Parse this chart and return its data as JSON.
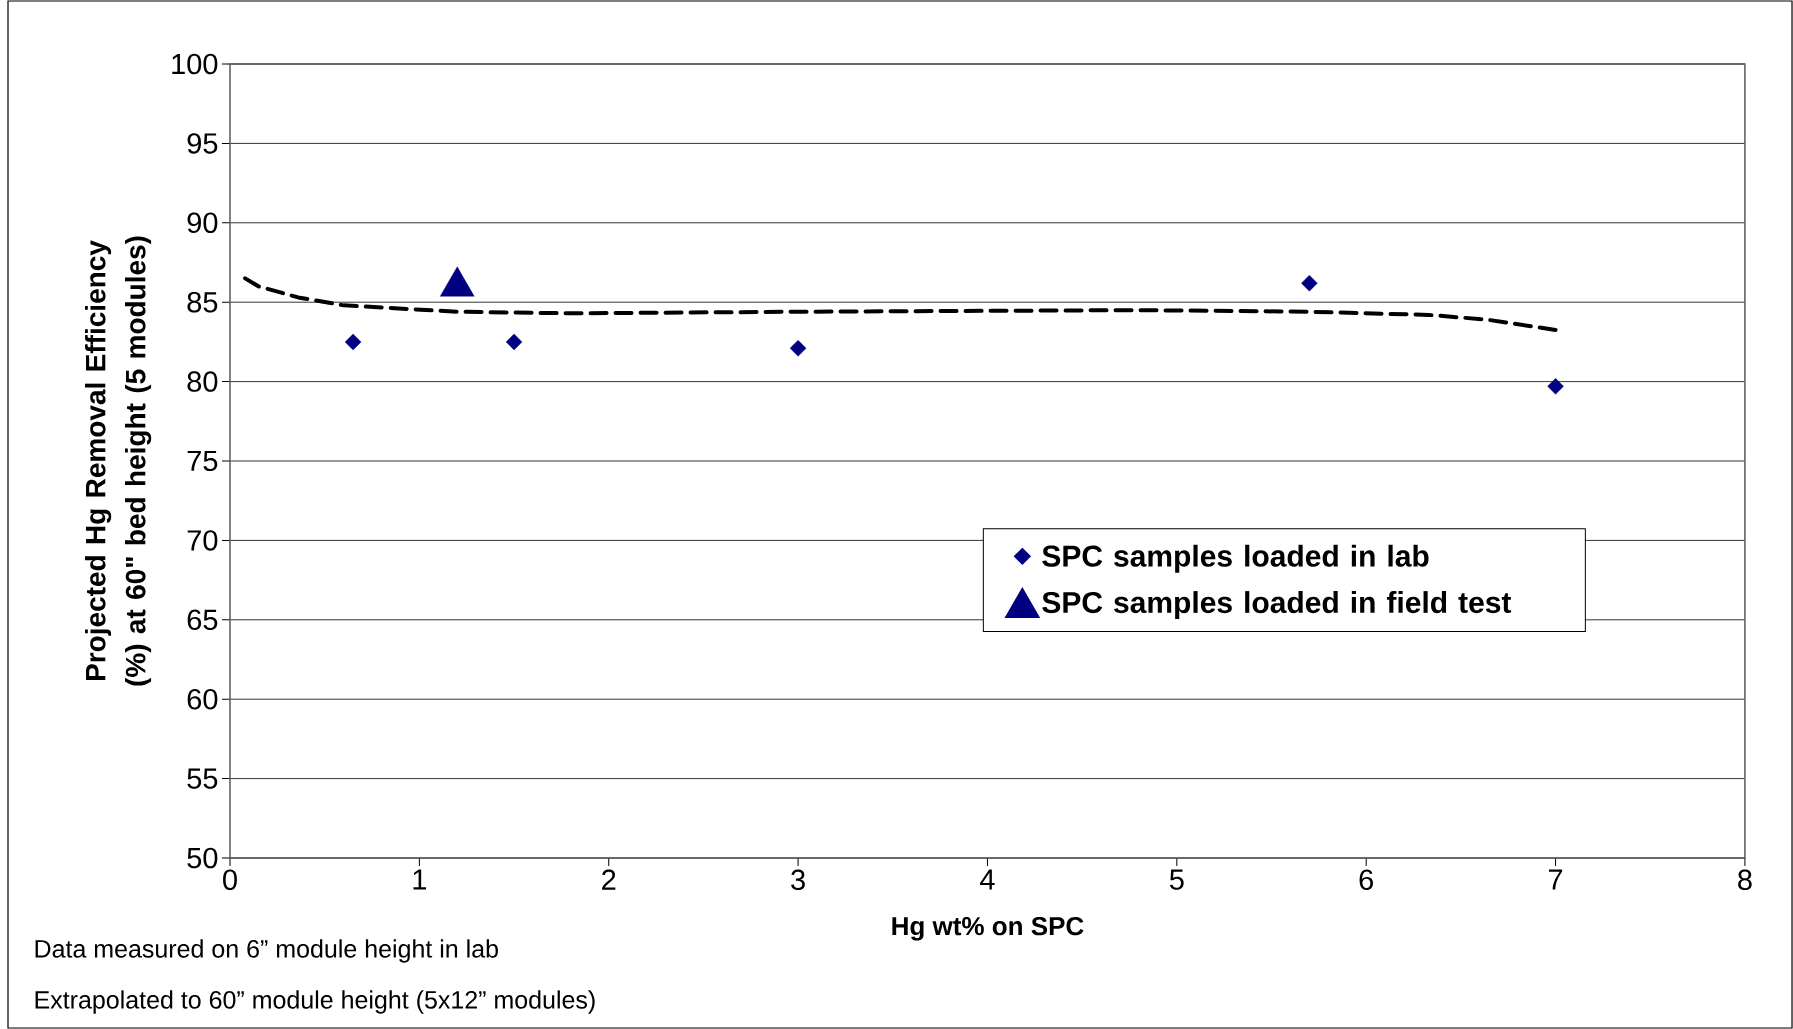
{
  "chart_data": {
    "type": "scatter",
    "xlabel": "Hg wt% on SPC",
    "ylabel": "Projected Hg Removal Efficiency (%) at 60\" bed height (5 modules)",
    "xlim": [
      0,
      8
    ],
    "xticks": [
      0,
      1,
      2,
      3,
      4,
      5,
      6,
      7,
      8
    ],
    "ylim": [
      50,
      100
    ],
    "yticks": [
      50,
      55,
      60,
      65,
      70,
      75,
      80,
      85,
      90,
      95,
      100
    ],
    "grid": "y",
    "legend": "right",
    "series": [
      {
        "name": "SPC samples loaded in lab",
        "color": "#000080",
        "marker": "diamond",
        "x": [
          0.65,
          1.5,
          3.0,
          5.7,
          7.0
        ],
        "values": [
          82.5,
          82.5,
          82.1,
          86.2,
          79.7
        ]
      },
      {
        "name": "SPC samples loaded in field test",
        "color": "#000080",
        "marker": "triangle",
        "x": [
          1.2
        ],
        "values": [
          86.3
        ]
      },
      {
        "type": "line",
        "color": "#000000",
        "marker": "none",
        "line_style": "dashed",
        "x": [
          0.08,
          0.15,
          0.36,
          0.6,
          1.2,
          1.8,
          3.0,
          4.8,
          5.7,
          6.33,
          6.64,
          7.03
        ],
        "values": [
          86.5,
          86.0,
          85.3,
          84.8,
          84.4,
          84.3,
          84.4,
          84.5,
          84.4,
          84.2,
          83.9,
          83.2
        ]
      }
    ],
    "annotations": [
      "Data measured on 6” module height in lab",
      "Extrapolated to 60” module height (5x12” modules)"
    ]
  }
}
